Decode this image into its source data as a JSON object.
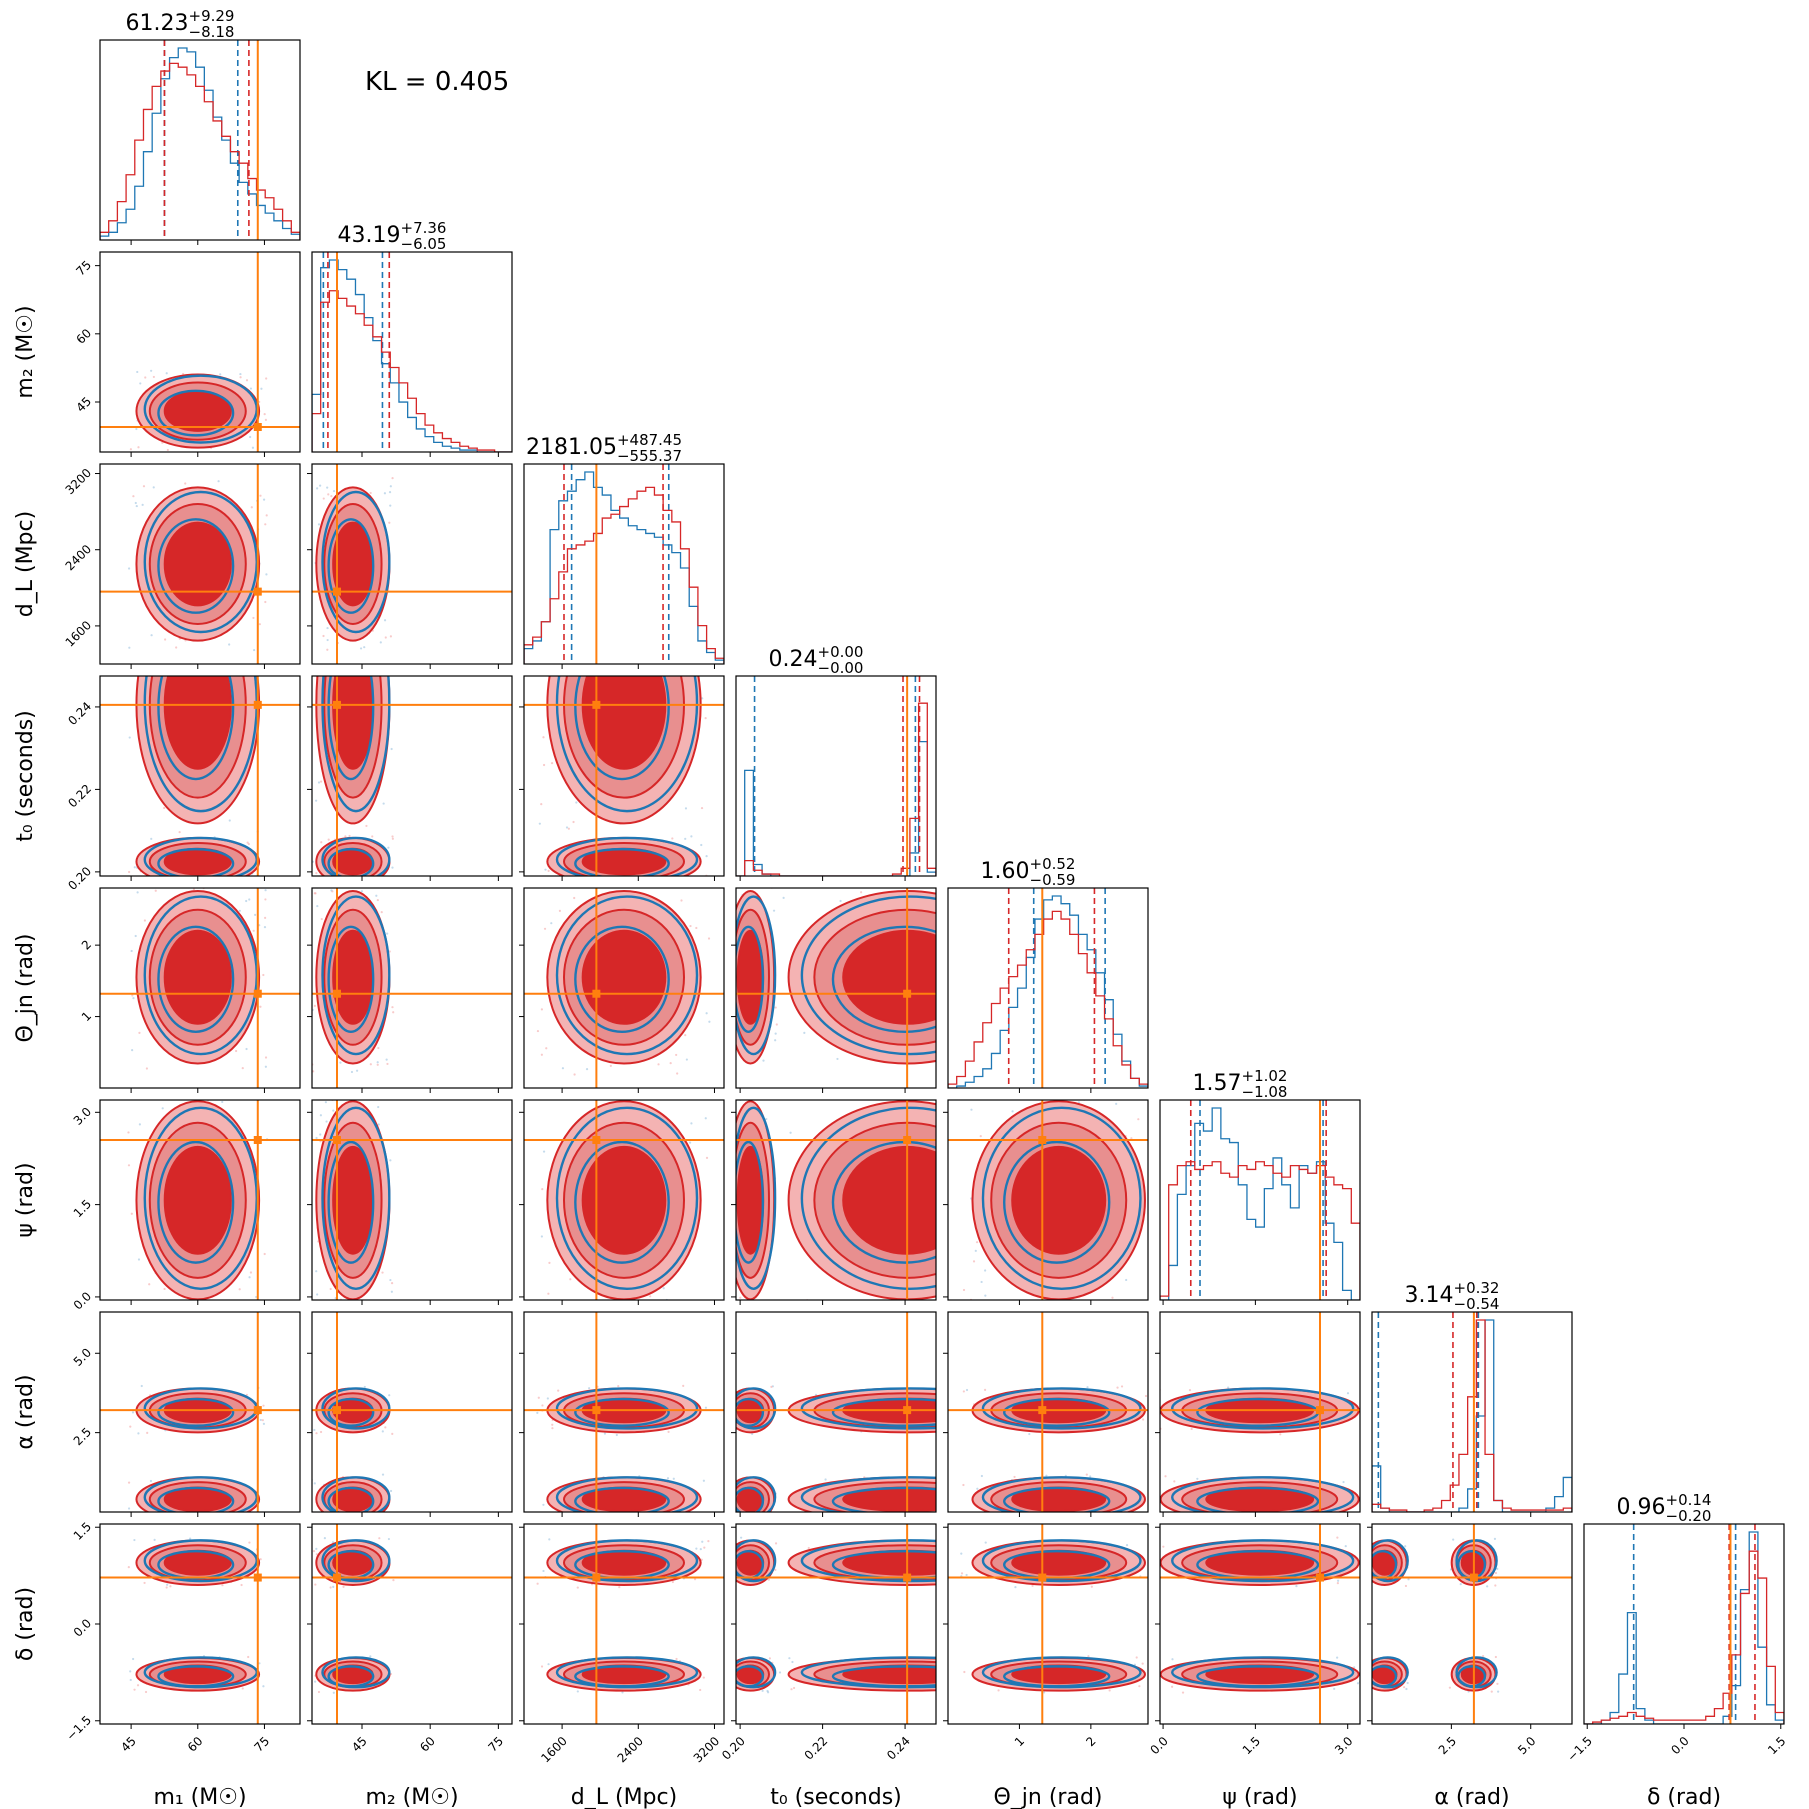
{
  "chart_data": {
    "type": "corner",
    "annotation": "KL = 0.405",
    "colors": {
      "blue": "#1f77b4",
      "red": "#d62728",
      "truth": "#ff7f0e"
    },
    "series": [
      {
        "name": "",
        "color": "#1f77b4"
      },
      {
        "name": "",
        "color": "#d62728"
      }
    ],
    "parameters": [
      {
        "key": "m1",
        "label": "m₁ (M☉)",
        "range": [
          38,
          83
        ],
        "ticks": [
          "45",
          "60",
          "75"
        ],
        "tick_values": [
          45,
          60,
          75
        ],
        "truth": 73.5,
        "median": "61.23",
        "plus": "+9.29",
        "minus": "−8.18",
        "quantiles": {
          "blue": [
            52.5,
            69.0
          ],
          "red": [
            52.5,
            71.5
          ]
        }
      },
      {
        "key": "m2",
        "label": "m₂ (M☉)",
        "range": [
          34,
          78
        ],
        "ticks": [
          "45",
          "60",
          "75"
        ],
        "tick_values": [
          45,
          60,
          75
        ],
        "truth": 39.5,
        "median": "43.19",
        "plus": "+7.36",
        "minus": "−6.05",
        "quantiles": {
          "blue": [
            36.5,
            49.5
          ],
          "red": [
            37.5,
            51.0
          ]
        }
      },
      {
        "key": "dl",
        "label": "d_L (Mpc)",
        "range": [
          1200,
          3300
        ],
        "ticks": [
          "1600",
          "2400",
          "3200"
        ],
        "tick_values": [
          1600,
          2400,
          3200
        ],
        "truth": 1960,
        "median": "2181.05",
        "plus": "+487.45",
        "minus": "−555.37",
        "quantiles": {
          "blue": [
            1700,
            2720
          ],
          "red": [
            1620,
            2660
          ]
        }
      },
      {
        "key": "t0",
        "label": "t₀ (seconds)",
        "range": [
          0.199,
          0.2475
        ],
        "ticks": [
          "0.20",
          "0.22",
          "0.24"
        ],
        "tick_values": [
          0.2,
          0.22,
          0.24
        ],
        "truth": 0.2405,
        "median": "0.24",
        "plus": "+0.00",
        "minus": "−0.00",
        "quantiles": {
          "blue": [
            0.2035,
            0.2425
          ],
          "red": [
            0.2395,
            0.2435
          ]
        }
      },
      {
        "key": "thetajn",
        "label": "Θ_jn (rad)",
        "range": [
          0.0,
          2.8
        ],
        "ticks": [
          "1",
          "2"
        ],
        "tick_values": [
          1,
          2
        ],
        "truth": 1.32,
        "median": "1.60",
        "plus": "+0.52",
        "minus": "−0.59",
        "quantiles": {
          "blue": [
            1.2,
            2.2
          ],
          "red": [
            0.85,
            2.05
          ]
        }
      },
      {
        "key": "psi",
        "label": "ψ (rad)",
        "range": [
          -0.05,
          3.2
        ],
        "ticks": [
          "0.0",
          "1.5",
          "3.0"
        ],
        "tick_values": [
          0.0,
          1.5,
          3.0
        ],
        "truth": 2.55,
        "median": "1.57",
        "plus": "+1.02",
        "minus": "−1.08",
        "quantiles": {
          "blue": [
            0.6,
            2.6
          ],
          "red": [
            0.45,
            2.65
          ]
        }
      },
      {
        "key": "alpha",
        "label": "α (rad)",
        "range": [
          0.0,
          6.3
        ],
        "ticks": [
          "2.5",
          "5.0"
        ],
        "tick_values": [
          2.5,
          5.0
        ],
        "truth": 3.21,
        "median": "3.14",
        "plus": "+0.32",
        "minus": "−0.54",
        "quantiles": {
          "blue": [
            0.2,
            3.35
          ],
          "red": [
            2.55,
            3.3
          ]
        }
      },
      {
        "key": "delta",
        "label": "δ (rad)",
        "range": [
          -1.55,
          1.55
        ],
        "ticks": [
          "−1.5",
          "0.0",
          "1.5"
        ],
        "tick_values": [
          -1.5,
          0.0,
          1.5
        ],
        "truth": 0.72,
        "median": "0.96",
        "plus": "+0.14",
        "minus": "−0.20",
        "quantiles": {
          "blue": [
            -0.78,
            0.8
          ],
          "red": [
            0.7,
            1.1
          ]
        }
      }
    ],
    "blobs": {
      "t0": [
        [
          0.2405,
          0.025
        ],
        [
          0.2025,
          0.005
        ]
      ],
      "alpha": [
        [
          3.2,
          0.6
        ],
        [
          0.4,
          0.6
        ]
      ],
      "delta": [
        [
          0.95,
          0.3
        ],
        [
          -0.78,
          0.22
        ]
      ],
      "thetajn": [
        [
          1.55,
          1.05
        ]
      ],
      "m1": [
        [
          60,
          12
        ]
      ],
      "m2": [
        [
          43,
          7
        ]
      ],
      "dl": [
        [
          2250,
          700
        ]
      ],
      "psi": [
        [
          1.57,
          1.4
        ]
      ]
    },
    "histograms": {
      "blue": [
        [
          2,
          4,
          9,
          16,
          28,
          46,
          66,
          84,
          95,
          100,
          98,
          90,
          78,
          64,
          52,
          40,
          30,
          24,
          18,
          14,
          10,
          6,
          3
        ],
        [
          30,
          96,
          100,
          95,
          90,
          82,
          70,
          58,
          46,
          36,
          26,
          18,
          12,
          8,
          5,
          3,
          2,
          1,
          1,
          0,
          0,
          0,
          0
        ],
        [
          8,
          12,
          22,
          70,
          85,
          90,
          96,
          100,
          92,
          88,
          80,
          76,
          72,
          70,
          68,
          66,
          62,
          58,
          50,
          30,
          12,
          6,
          2
        ],
        [
          0,
          55,
          6,
          1,
          0,
          0,
          0,
          0,
          0,
          0,
          0,
          0,
          0,
          0,
          0,
          0,
          0,
          0,
          0,
          0,
          12,
          70,
          2
        ],
        [
          0,
          1,
          3,
          6,
          10,
          18,
          30,
          42,
          52,
          68,
          88,
          98,
          100,
          96,
          90,
          80,
          72,
          60,
          46,
          28,
          14,
          5,
          1
        ],
        [
          0,
          18,
          55,
          70,
          92,
          88,
          100,
          84,
          82,
          60,
          42,
          38,
          58,
          74,
          60,
          48,
          70,
          66,
          72,
          40,
          30,
          5,
          0
        ],
        [
          24,
          2,
          0,
          0,
          0,
          0,
          0,
          0,
          0,
          0,
          2,
          12,
          50,
          100,
          6,
          0,
          0,
          0,
          0,
          0,
          2,
          8,
          18
        ],
        [
          0,
          0,
          2,
          6,
          26,
          58,
          8,
          2,
          0,
          0,
          0,
          0,
          0,
          0,
          0,
          0,
          4,
          20,
          70,
          100,
          40,
          10,
          2
        ]
      ],
      "red": [
        [
          4,
          10,
          20,
          34,
          52,
          68,
          80,
          88,
          92,
          90,
          86,
          80,
          72,
          62,
          54,
          46,
          40,
          32,
          26,
          22,
          16,
          10,
          4
        ],
        [
          20,
          78,
          84,
          80,
          76,
          72,
          66,
          60,
          52,
          44,
          36,
          28,
          20,
          14,
          10,
          7,
          5,
          3,
          2,
          1,
          1,
          0,
          0
        ],
        [
          10,
          14,
          22,
          34,
          48,
          60,
          62,
          64,
          68,
          76,
          78,
          82,
          86,
          90,
          92,
          88,
          80,
          74,
          60,
          40,
          20,
          8,
          3
        ],
        [
          0,
          8,
          3,
          1,
          1,
          0,
          0,
          0,
          0,
          0,
          0,
          0,
          0,
          0,
          0,
          0,
          0,
          0,
          1,
          4,
          30,
          90,
          4
        ],
        [
          2,
          6,
          14,
          24,
          34,
          44,
          52,
          58,
          64,
          72,
          80,
          88,
          92,
          88,
          80,
          70,
          60,
          48,
          36,
          22,
          12,
          5,
          2
        ],
        [
          2,
          60,
          70,
          72,
          68,
          70,
          72,
          66,
          64,
          70,
          68,
          72,
          70,
          66,
          64,
          70,
          68,
          66,
          70,
          64,
          60,
          58,
          40
        ],
        [
          4,
          2,
          1,
          1,
          0,
          0,
          1,
          2,
          6,
          14,
          30,
          60,
          100,
          30,
          6,
          2,
          1,
          1,
          1,
          1,
          1,
          1,
          2
        ],
        [
          0,
          1,
          2,
          3,
          4,
          6,
          4,
          3,
          2,
          2,
          2,
          2,
          2,
          2,
          4,
          8,
          16,
          36,
          68,
          90,
          76,
          30,
          6
        ]
      ]
    },
    "xlim_note": "all panels share the same per-parameter axis ranges listed in parameters[].range"
  }
}
